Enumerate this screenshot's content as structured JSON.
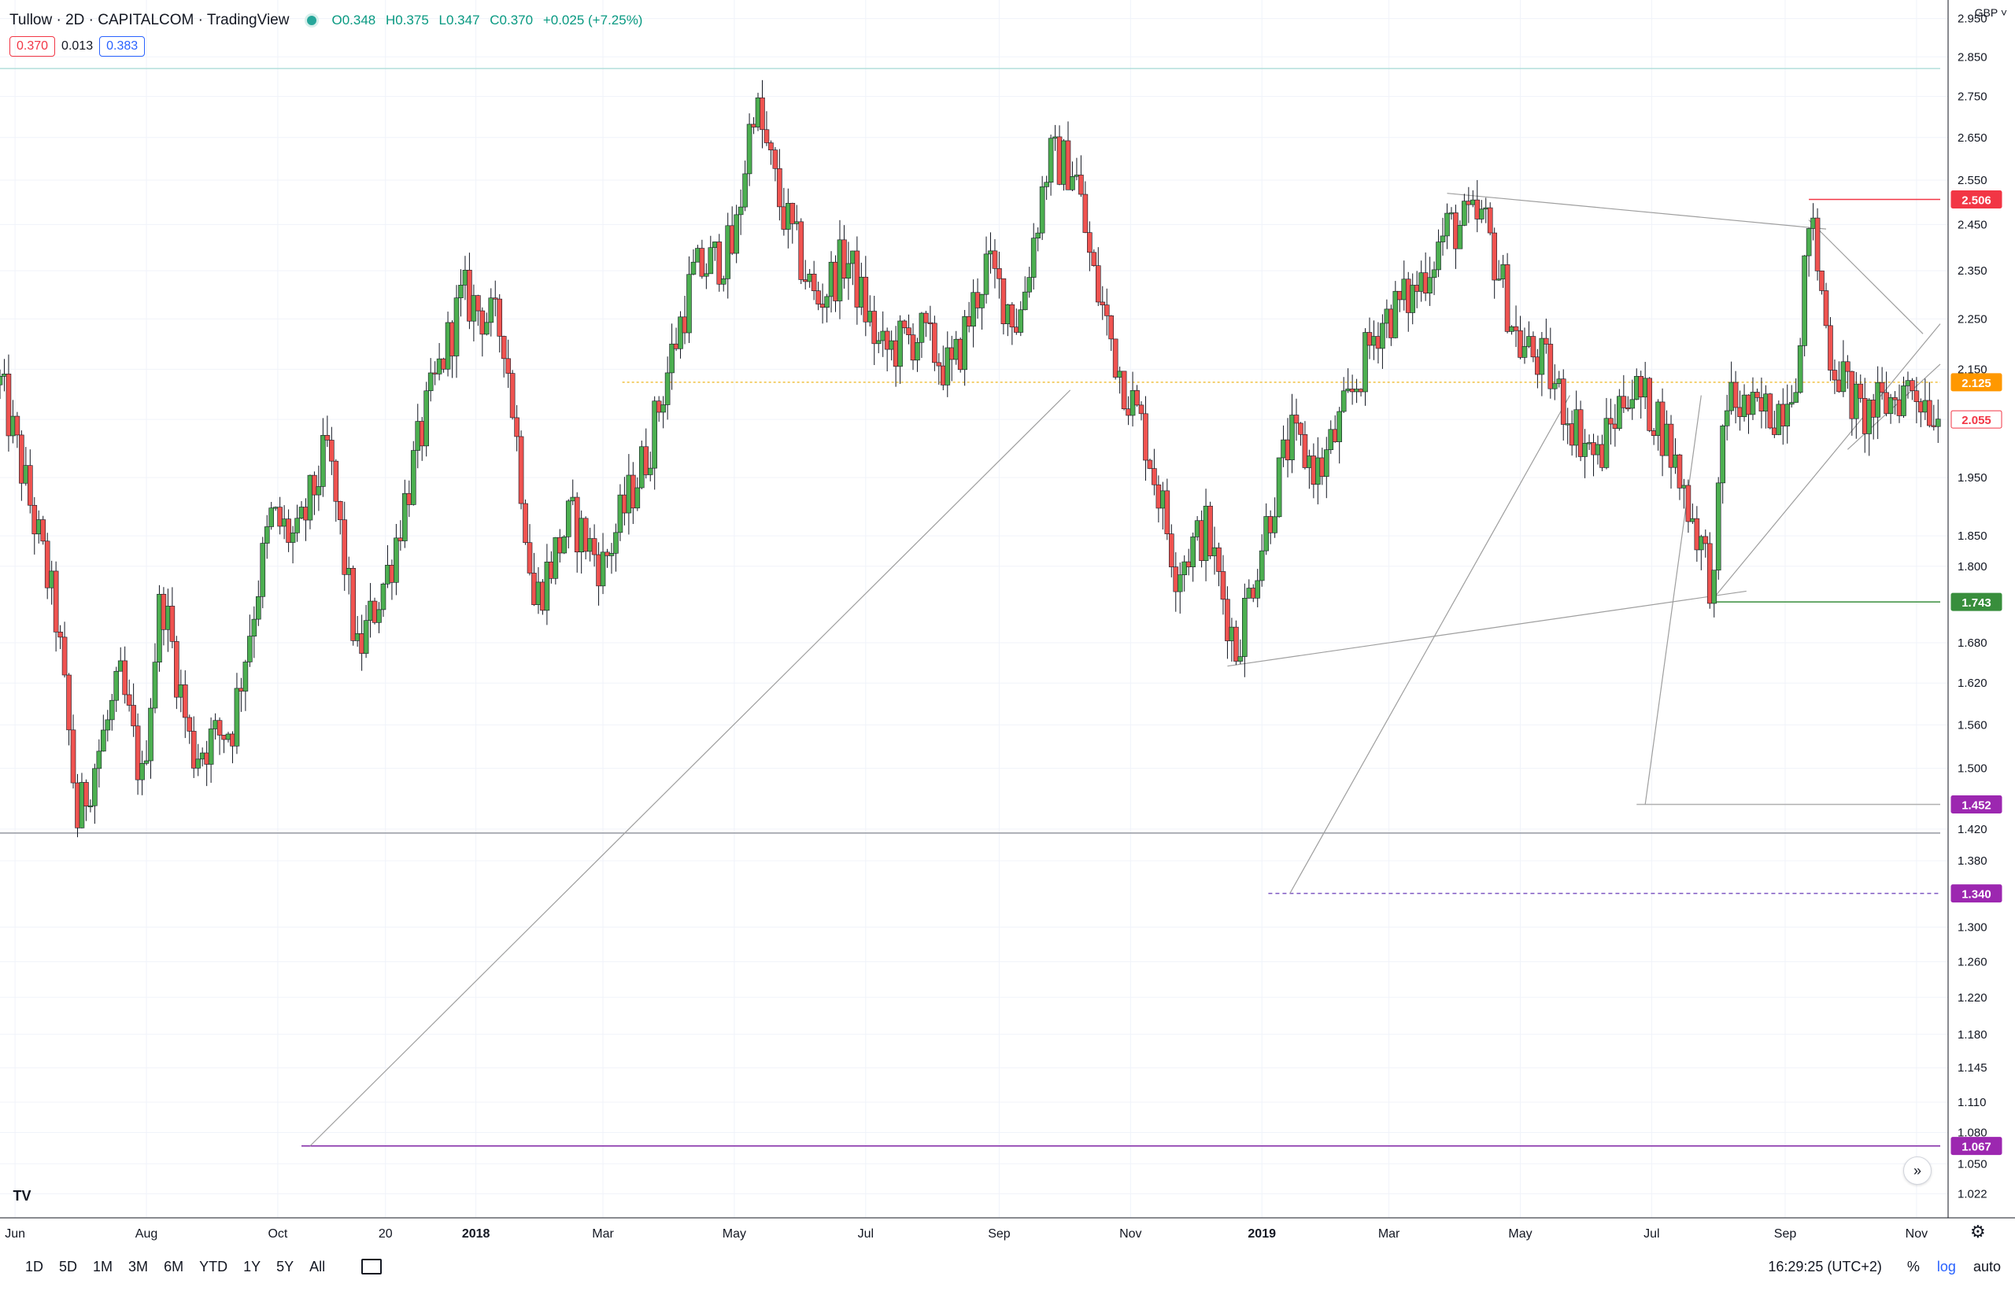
{
  "header": {
    "symbol_line": "Tullow · 2D · CAPITALCOM · TradingView",
    "ohlc": {
      "open": "O0.348",
      "high": "H0.375",
      "low": "L0.347",
      "close": "C0.370",
      "change": "+0.025 (+7.25%)"
    }
  },
  "quote": {
    "bid": "0.370",
    "spread": "0.013",
    "ask": "0.383"
  },
  "currency": "GBP",
  "timeframes": [
    "1D",
    "5D",
    "1M",
    "3M",
    "6M",
    "YTD",
    "1Y",
    "5Y",
    "All"
  ],
  "footer": {
    "clock": "16:29:25 (UTC+2)",
    "percent": "%",
    "log": "log",
    "auto": "auto"
  },
  "colors": {
    "up": "#26a69a",
    "up_body": "#4caf50",
    "down": "#ef5350",
    "tag_red": "#f23645",
    "tag_orange": "#ff9800",
    "tag_green": "#388e3c",
    "tag_purple": "#9c27b0"
  },
  "chart_data": {
    "type": "candlestick",
    "scale": "log",
    "x_range": [
      "2017-05-25",
      "2019-11-12"
    ],
    "ylim": [
      1.0,
      3.0
    ],
    "y_ticks": [
      "2.950",
      "2.850",
      "2.750",
      "2.650",
      "2.550",
      "2.450",
      "2.350",
      "2.250",
      "2.150",
      "2.055",
      "1.950",
      "1.850",
      "1.800",
      "1.680",
      "1.620",
      "1.560",
      "1.500",
      "1.420",
      "1.380",
      "1.300",
      "1.260",
      "1.220",
      "1.180",
      "1.145",
      "1.110",
      "1.080",
      "1.050",
      "1.022"
    ],
    "x_ticks": [
      {
        "label": "Jun",
        "date": "2017-06-01"
      },
      {
        "label": "Aug",
        "date": "2017-08-01"
      },
      {
        "label": "Oct",
        "date": "2017-10-01"
      },
      {
        "label": "20",
        "date": "2017-11-20"
      },
      {
        "label": "2018",
        "date": "2018-01-01"
      },
      {
        "label": "Mar",
        "date": "2018-03-01"
      },
      {
        "label": "May",
        "date": "2018-05-01"
      },
      {
        "label": "Jul",
        "date": "2018-07-01"
      },
      {
        "label": "Sep",
        "date": "2018-09-01"
      },
      {
        "label": "Nov",
        "date": "2018-11-01"
      },
      {
        "label": "2019",
        "date": "2019-01-01"
      },
      {
        "label": "Mar",
        "date": "2019-03-01"
      },
      {
        "label": "May",
        "date": "2019-05-01"
      },
      {
        "label": "Jul",
        "date": "2019-07-01"
      },
      {
        "label": "Sep",
        "date": "2019-09-01"
      },
      {
        "label": "Nov",
        "date": "2019-11-01"
      }
    ],
    "anchors": [
      [
        "2017-05-25",
        2.12
      ],
      [
        "2017-06-20",
        1.72
      ],
      [
        "2017-06-30",
        1.43
      ],
      [
        "2017-07-20",
        1.62
      ],
      [
        "2017-07-30",
        1.48
      ],
      [
        "2017-08-08",
        1.76
      ],
      [
        "2017-08-22",
        1.52
      ],
      [
        "2017-09-10",
        1.56
      ],
      [
        "2017-09-28",
        1.88
      ],
      [
        "2017-10-10",
        1.84
      ],
      [
        "2017-10-24",
        2.0
      ],
      [
        "2017-11-07",
        1.66
      ],
      [
        "2017-11-22",
        1.8
      ],
      [
        "2017-12-10",
        2.08
      ],
      [
        "2017-12-26",
        2.3
      ],
      [
        "2018-01-14",
        2.22
      ],
      [
        "2018-01-28",
        1.74
      ],
      [
        "2018-02-14",
        1.88
      ],
      [
        "2018-03-01",
        1.8
      ],
      [
        "2018-03-22",
        2.0
      ],
      [
        "2018-04-12",
        2.34
      ],
      [
        "2018-05-01",
        2.4
      ],
      [
        "2018-05-10",
        2.74
      ],
      [
        "2018-05-22",
        2.5
      ],
      [
        "2018-06-08",
        2.28
      ],
      [
        "2018-06-22",
        2.38
      ],
      [
        "2018-07-08",
        2.18
      ],
      [
        "2018-07-26",
        2.22
      ],
      [
        "2018-08-10",
        2.14
      ],
      [
        "2018-08-26",
        2.36
      ],
      [
        "2018-09-10",
        2.24
      ],
      [
        "2018-09-24",
        2.6
      ],
      [
        "2018-10-06",
        2.58
      ],
      [
        "2018-10-14",
        2.35
      ],
      [
        "2018-10-26",
        2.16
      ],
      [
        "2018-11-08",
        2.02
      ],
      [
        "2018-11-22",
        1.8
      ],
      [
        "2018-12-06",
        1.86
      ],
      [
        "2018-12-20",
        1.67
      ],
      [
        "2019-01-01",
        1.84
      ],
      [
        "2019-01-14",
        2.02
      ],
      [
        "2019-01-28",
        1.96
      ],
      [
        "2019-02-10",
        2.08
      ],
      [
        "2019-02-24",
        2.24
      ],
      [
        "2019-03-12",
        2.3
      ],
      [
        "2019-03-28",
        2.44
      ],
      [
        "2019-04-14",
        2.46
      ],
      [
        "2019-04-30",
        2.2
      ],
      [
        "2019-05-12",
        2.16
      ],
      [
        "2019-05-24",
        2.06
      ],
      [
        "2019-06-06",
        1.98
      ],
      [
        "2019-06-20",
        2.12
      ],
      [
        "2019-07-04",
        2.06
      ],
      [
        "2019-07-22",
        1.86
      ],
      [
        "2019-07-30",
        1.76
      ],
      [
        "2019-08-04",
        2.1
      ],
      [
        "2019-08-18",
        2.06
      ],
      [
        "2019-08-30",
        2.08
      ],
      [
        "2019-09-08",
        2.18
      ],
      [
        "2019-09-12",
        2.48
      ],
      [
        "2019-09-22",
        2.18
      ],
      [
        "2019-10-06",
        2.06
      ],
      [
        "2019-10-16",
        2.08
      ],
      [
        "2019-10-30",
        2.12
      ],
      [
        "2019-11-12",
        2.06
      ]
    ],
    "price_tags": [
      {
        "label": "2.506",
        "value": 2.506,
        "color": "#f23645",
        "filled": true
      },
      {
        "label": "2.125",
        "value": 2.125,
        "color": "#ff9800",
        "filled": true
      },
      {
        "label": "2.055",
        "value": 2.055,
        "color": "#f23645",
        "filled": false
      },
      {
        "label": "1.743",
        "value": 1.743,
        "color": "#388e3c",
        "filled": true
      },
      {
        "label": "1.452",
        "value": 1.452,
        "color": "#9c27b0",
        "filled": true
      },
      {
        "label": "1.340",
        "value": 1.34,
        "color": "#9c27b0",
        "filled": true
      },
      {
        "label": "1.067",
        "value": 1.067,
        "color": "#9c27b0",
        "filled": true
      }
    ],
    "horizontal_lines": [
      {
        "value": 2.125,
        "from": "2018-03-10",
        "to": "2019-11-12",
        "color": "#f0c040",
        "dash": "3,3"
      },
      {
        "value": 2.82,
        "from": "2017-05-25",
        "to": "2019-11-12",
        "color": "#b2dfdb",
        "dash": ""
      },
      {
        "value": 1.415,
        "from": "2017-05-25",
        "to": "2019-11-12",
        "color": "#9598a1",
        "dash": ""
      },
      {
        "value": 1.067,
        "from": "2017-10-12",
        "to": "2019-11-12",
        "color": "#7b1fa2",
        "dash": ""
      },
      {
        "value": 1.34,
        "from": "2019-01-04",
        "to": "2019-11-12",
        "color": "#7e57c2",
        "dash": "5,4"
      },
      {
        "value": 1.452,
        "from": "2019-06-24",
        "to": "2019-11-12",
        "color": "#b0b0b0",
        "dash": ""
      },
      {
        "value": 1.743,
        "from": "2019-07-30",
        "to": "2019-11-12",
        "color": "#388e3c",
        "dash": ""
      },
      {
        "value": 2.506,
        "from": "2019-09-12",
        "to": "2019-11-12",
        "color": "#f23645",
        "dash": ""
      }
    ],
    "trend_lines": [
      {
        "from": [
          "2017-10-16",
          1.067
        ],
        "to": [
          "2018-10-04",
          2.11
        ]
      },
      {
        "from": [
          "2019-01-14",
          1.34
        ],
        "to": [
          "2019-05-24",
          2.1
        ]
      },
      {
        "from": [
          "2019-06-28",
          1.452
        ],
        "to": [
          "2019-07-24",
          2.1
        ]
      },
      {
        "from": [
          "2018-12-16",
          1.645
        ],
        "to": [
          "2019-08-14",
          1.76
        ]
      },
      {
        "from": [
          "2019-03-28",
          2.52
        ],
        "to": [
          "2019-09-20",
          2.44
        ]
      },
      {
        "from": [
          "2019-07-30",
          1.75
        ],
        "to": [
          "2019-11-12",
          2.24
        ]
      },
      {
        "from": [
          "2019-09-12",
          2.46
        ],
        "to": [
          "2019-11-04",
          2.22
        ]
      },
      {
        "from": [
          "2019-09-30",
          2.0
        ],
        "to": [
          "2019-11-12",
          2.16
        ]
      }
    ]
  }
}
